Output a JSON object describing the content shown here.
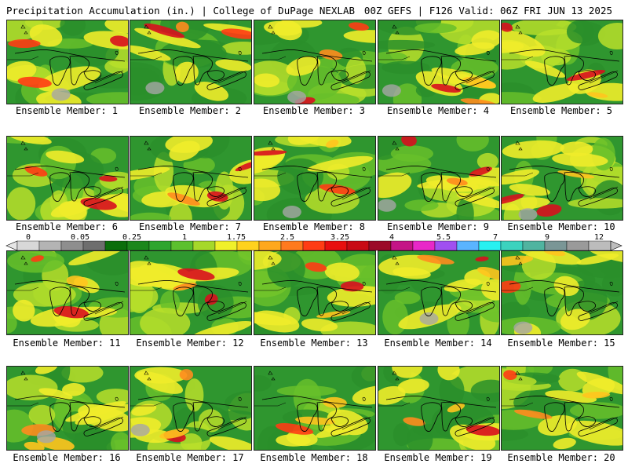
{
  "header": {
    "left": "Precipitation Accumulation (in.) | College of DuPage NEXLAB",
    "right": "00Z GEFS | F126 Valid: 06Z FRI JUN 13 2025"
  },
  "members": [
    "Ensemble Member: 1",
    "Ensemble Member: 2",
    "Ensemble Member: 3",
    "Ensemble Member: 4",
    "Ensemble Member: 5",
    "Ensemble Member: 6",
    "Ensemble Member: 7",
    "Ensemble Member: 8",
    "Ensemble Member: 9",
    "Ensemble Member: 10",
    "Ensemble Member: 11",
    "Ensemble Member: 12",
    "Ensemble Member: 13",
    "Ensemble Member: 14",
    "Ensemble Member: 15",
    "Ensemble Member: 16",
    "Ensemble Member: 17",
    "Ensemble Member: 18",
    "Ensemble Member: 19",
    "Ensemble Member: 20"
  ],
  "colorbar": {
    "ticks": [
      "0",
      "0.05",
      "0.25",
      "1",
      "1.75",
      "2.5",
      "3.25",
      "4",
      "5.5",
      "7",
      "9",
      "12"
    ],
    "colors": [
      "#d8d8d8",
      "#b4b4b4",
      "#8e8e8e",
      "#6e6e6e",
      "#0b6e0b",
      "#1b871b",
      "#2ea52e",
      "#5cc02e",
      "#a6d82a",
      "#f0f02a",
      "#ffd21e",
      "#ffa81e",
      "#ff7a1e",
      "#ff3c14",
      "#e80f0f",
      "#c80a14",
      "#9b0a28",
      "#c41486",
      "#e828c8",
      "#a050f0",
      "#5ab4ff",
      "#28f0f0",
      "#3cd2be",
      "#50b4a0",
      "#7a9696",
      "#9a9a9a",
      "#bcbcbc"
    ]
  }
}
